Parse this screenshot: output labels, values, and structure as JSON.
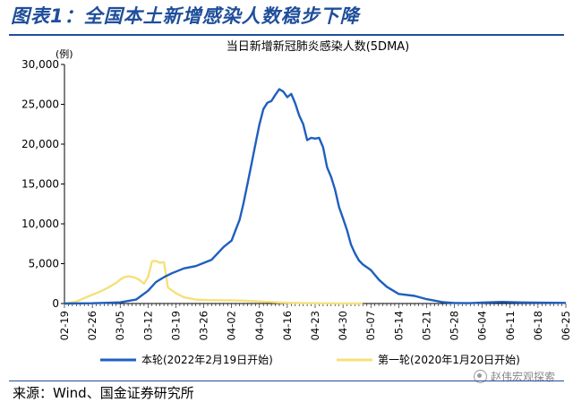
{
  "header": {
    "figure_title": "图表1：全国本土新增感染人数稳步下降"
  },
  "footer": {
    "source": "来源：Wind、国金证券研究所",
    "watermark": "赵伟宏观探索"
  },
  "chart_data": {
    "type": "line",
    "title": "当日新增新冠肺炎感染人数(5DMA)",
    "ylabel": "(例)",
    "ylim": [
      0,
      30000
    ],
    "yticks": [
      "0",
      "5,000",
      "10,000",
      "15,000",
      "20,000",
      "25,000",
      "30,000"
    ],
    "ytick_values": [
      0,
      5000,
      10000,
      15000,
      20000,
      25000,
      30000
    ],
    "categories": [
      "02-19",
      "02-26",
      "03-05",
      "03-12",
      "03-19",
      "03-26",
      "04-02",
      "04-09",
      "04-16",
      "04-23",
      "04-30",
      "05-07",
      "05-14",
      "05-21",
      "05-28",
      "06-04",
      "06-11",
      "06-18",
      "06-25"
    ],
    "xlim": [
      0,
      126
    ],
    "grid": false,
    "legend_position": "bottom",
    "series": [
      {
        "name": "本轮(2022年2月19日开始)",
        "color": "#1f5fbf",
        "x": [
          0,
          7,
          14,
          18,
          21,
          23,
          25,
          27,
          30,
          33,
          35,
          37,
          40,
          42,
          43,
          44,
          45,
          46,
          47,
          48,
          49,
          50,
          51,
          52,
          53,
          54,
          55,
          56,
          57,
          58,
          59,
          60,
          61,
          62,
          63,
          64,
          65,
          66,
          67,
          68,
          69,
          70,
          71,
          72,
          73,
          74,
          75,
          77,
          79,
          81,
          84,
          88,
          91,
          95,
          98,
          102,
          105,
          110,
          115,
          120,
          126
        ],
        "values": [
          0,
          30,
          150,
          500,
          1600,
          2700,
          3300,
          3800,
          4400,
          4700,
          5100,
          5500,
          7100,
          7900,
          9200,
          10500,
          12600,
          15000,
          17500,
          20000,
          22500,
          24400,
          25200,
          25400,
          26200,
          26900,
          26600,
          25900,
          26300,
          25100,
          23600,
          22500,
          20500,
          20800,
          20700,
          20800,
          19600,
          17100,
          15900,
          14300,
          12100,
          10700,
          9200,
          7400,
          6300,
          5400,
          4900,
          4200,
          3000,
          2100,
          1200,
          950,
          550,
          180,
          70,
          40,
          120,
          200,
          140,
          100,
          80
        ]
      },
      {
        "name": "第一轮(2020年1月20日开始)",
        "color": "#f5e07a",
        "x": [
          0,
          3,
          6,
          9,
          11,
          13,
          14,
          15,
          16,
          17,
          18,
          19,
          20,
          21,
          22,
          23,
          24,
          25,
          26,
          28,
          30,
          33,
          36,
          40,
          44,
          48,
          52,
          56,
          60,
          65,
          70,
          75
        ],
        "values": [
          0,
          250,
          900,
          1500,
          2000,
          2600,
          3000,
          3300,
          3400,
          3350,
          3200,
          2900,
          2500,
          3300,
          5300,
          5350,
          5100,
          5200,
          2000,
          1300,
          800,
          500,
          430,
          400,
          370,
          280,
          180,
          90,
          50,
          20,
          10,
          0
        ]
      }
    ]
  }
}
